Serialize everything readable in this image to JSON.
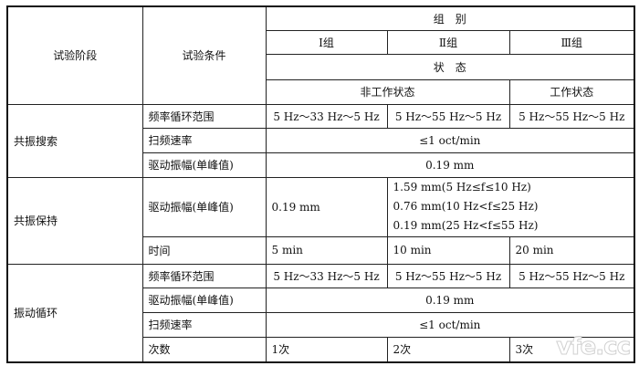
{
  "header": {
    "stage": "试验阶段",
    "condition": "试验条件",
    "group": "组　别",
    "groups": [
      "Ⅰ组",
      "Ⅱ组",
      "Ⅲ组"
    ],
    "state": "状　态",
    "states": [
      "非工作状态",
      "工作状态"
    ]
  },
  "resonance_search": {
    "stage": "共振搜索",
    "freq_label": "频率循环范围",
    "freq": [
      "5 Hz～33 Hz～5 Hz",
      "5 Hz～55 Hz～5 Hz",
      "5 Hz～55 Hz～5 Hz"
    ],
    "sweep_label": "扫频速率",
    "sweep": "≤1 oct/min",
    "amp_label": "驱动振幅(单峰值)",
    "amp": "0.19 mm"
  },
  "resonance_dwell": {
    "stage": "共振保持",
    "amp_label": "驱动振幅(单峰值)",
    "amp_g1": "0.19 mm",
    "amp_g23": [
      "1.59 mm(5 Hz≤f≤10 Hz)",
      "0.76 mm(10 Hz<f≤25 Hz)",
      "0.19 mm(25 Hz<f≤55 Hz)"
    ],
    "time_label": "时间",
    "time": [
      "5 min",
      "10 min",
      "20 min"
    ]
  },
  "vibration_cycle": {
    "stage": "振动循环",
    "freq_label": "频率循环范围",
    "freq": [
      "5 Hz～33 Hz～5 Hz",
      "5 Hz～55 Hz～5 Hz",
      "5 Hz～55 Hz～5 Hz"
    ],
    "amp_label": "驱动振幅(单峰值)",
    "amp": "0.19 mm",
    "sweep_label": "扫频速率",
    "sweep": "≤1 oct/min",
    "count_label": "次数",
    "count": [
      "1次",
      "2次",
      "3次"
    ]
  },
  "watermark": "vfe.cc"
}
